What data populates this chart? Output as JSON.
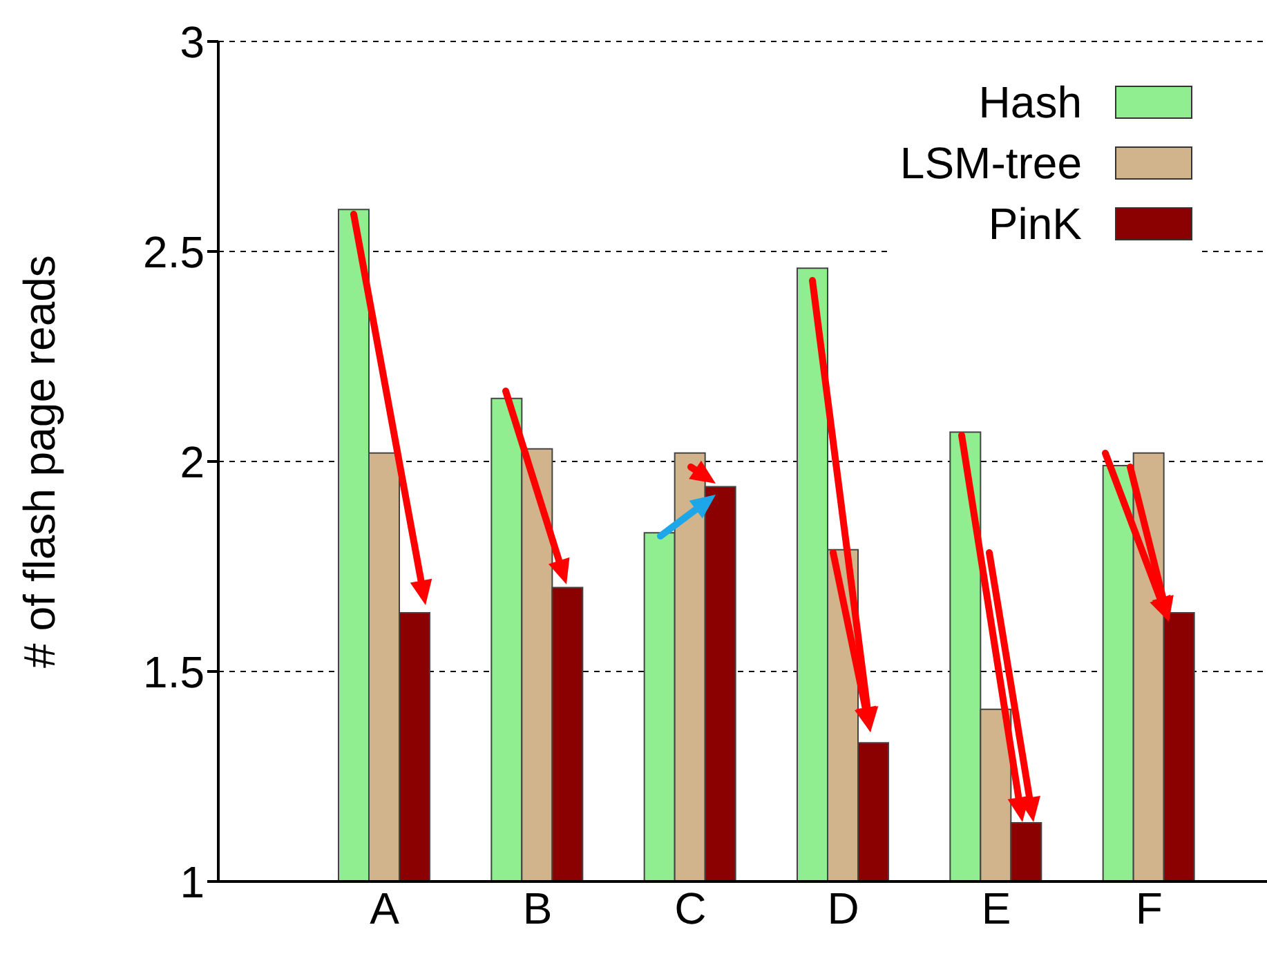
{
  "chart_data": {
    "type": "bar",
    "ylabel": "# of flash page reads",
    "categories": [
      "A",
      "B",
      "C",
      "D",
      "E",
      "F"
    ],
    "series": [
      {
        "name": "Hash",
        "color": "#90ee90",
        "values": [
          2.6,
          2.15,
          1.83,
          2.46,
          2.07,
          1.99
        ]
      },
      {
        "name": "LSM-tree",
        "color": "#d2b48c",
        "values": [
          2.02,
          2.03,
          2.02,
          1.79,
          1.41,
          2.02
        ]
      },
      {
        "name": "PinK",
        "color": "#8b0000",
        "values": [
          1.64,
          1.7,
          1.94,
          1.33,
          1.14,
          1.64
        ]
      }
    ],
    "ylim": [
      1,
      3
    ],
    "yticks": [
      1,
      1.5,
      2,
      2.5,
      3
    ],
    "grid": "y",
    "legend": "top right"
  }
}
